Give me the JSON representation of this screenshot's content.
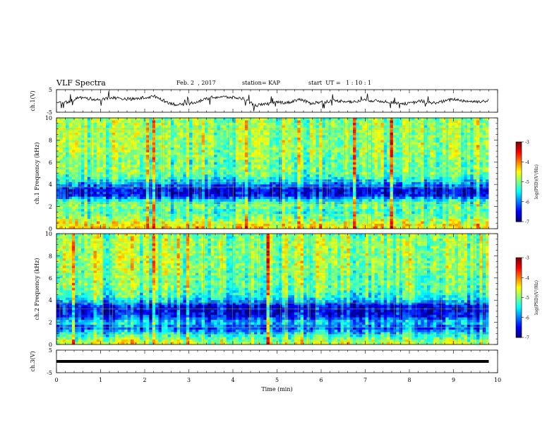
{
  "header": {
    "title": "VLF Spectra",
    "date": "Feb. 2  , 2017",
    "station": "station= KAP",
    "start_ut": "start  UT =   1 : 10 : 1"
  },
  "colorbar": {
    "label": "log(PSD)(V²/Hz)",
    "ticks": [
      "-3",
      "-4",
      "-5",
      "-6",
      "-7"
    ]
  },
  "chart_data": [
    {
      "type": "line",
      "name": "ch1-waveform",
      "ylabel": "ch.1(V)",
      "ylim": [
        -5,
        5
      ],
      "yticks": [
        "5",
        "-5"
      ],
      "xlim": [
        0,
        10
      ],
      "x": [
        0,
        0.25,
        0.5,
        0.75,
        1.0,
        1.25,
        1.5,
        1.75,
        2.0,
        2.25,
        2.5,
        2.75,
        3.0,
        3.25,
        3.5,
        3.75,
        4.0,
        4.25,
        4.5,
        4.75,
        5.0,
        5.25,
        5.5,
        5.75,
        6.0,
        6.25,
        6.5,
        6.75,
        7.0,
        7.25,
        7.5,
        7.75,
        8.0,
        8.25,
        8.5,
        8.75,
        9.0,
        9.25,
        9.5,
        9.75
      ],
      "y": [
        -1.0,
        -0.5,
        1.5,
        1.0,
        0.5,
        1.5,
        1.0,
        0.8,
        1.5,
        2.0,
        -0.5,
        -1.8,
        -1.2,
        0.0,
        1.5,
        1.8,
        1.5,
        1.0,
        -2.0,
        -1.5,
        -0.5,
        -0.8,
        0.8,
        -1.0,
        -0.5,
        0.0,
        0.0,
        -0.5,
        0.5,
        0.0,
        -0.3,
        -1.0,
        -1.2,
        0.0,
        -1.0,
        -0.3,
        0.8,
        0.0,
        -0.3,
        0.0
      ]
    },
    {
      "type": "heatmap",
      "name": "ch1-spectrogram",
      "ylabel": "ch.1 Frequency (kHz)",
      "ylim": [
        0,
        10
      ],
      "yticks": [
        "0",
        "2",
        "4",
        "6",
        "8",
        "10"
      ],
      "xlim": [
        0,
        9.8
      ],
      "zlim": [
        -7,
        -3
      ],
      "freq_profile_khz": [
        0.0,
        0.5,
        1.0,
        1.5,
        2.0,
        2.5,
        3.0,
        3.5,
        4.0,
        4.5,
        5.0,
        5.5,
        6.0,
        6.5,
        7.0,
        7.5,
        8.0,
        8.5,
        9.0,
        9.5,
        10.0
      ],
      "freq_profile_log_psd": [
        -4.3,
        -4.6,
        -5.0,
        -5.3,
        -5.0,
        -5.4,
        -6.5,
        -6.6,
        -6.0,
        -5.4,
        -5.1,
        -5.0,
        -5.1,
        -5.0,
        -4.9,
        -4.9,
        -4.9,
        -4.9,
        -4.9,
        -4.9,
        -5.0
      ]
    },
    {
      "type": "heatmap",
      "name": "ch2-spectrogram",
      "ylabel": "ch.2 Frequency (kHz)",
      "ylim": [
        0,
        10
      ],
      "yticks": [
        "0",
        "2",
        "4",
        "6",
        "8",
        "10"
      ],
      "xlim": [
        0,
        9.8
      ],
      "zlim": [
        -7,
        -3
      ],
      "freq_profile_khz": [
        0.0,
        0.5,
        1.0,
        1.5,
        2.0,
        2.5,
        3.0,
        3.5,
        4.0,
        4.5,
        5.0,
        5.5,
        6.0,
        6.5,
        7.0,
        7.5,
        8.0,
        8.5,
        9.0,
        9.5,
        10.0
      ],
      "freq_profile_log_psd": [
        -4.6,
        -5.0,
        -5.6,
        -6.2,
        -5.6,
        -6.4,
        -6.6,
        -6.5,
        -5.6,
        -5.3,
        -5.1,
        -5.0,
        -5.1,
        -5.0,
        -4.9,
        -4.9,
        -4.9,
        -4.9,
        -4.9,
        -4.9,
        -5.0
      ]
    },
    {
      "type": "line",
      "name": "ch3-waveform",
      "ylabel": "ch.3(V)",
      "ylim": [
        -5,
        5
      ],
      "yticks": [
        "5",
        "-5"
      ],
      "xlim": [
        0,
        10
      ],
      "x": [
        0,
        9.8
      ],
      "y": [
        0,
        0
      ]
    }
  ],
  "xaxis": {
    "label": "Time (min)",
    "ticks": [
      "0",
      "1",
      "2",
      "3",
      "4",
      "5",
      "6",
      "7",
      "8",
      "9",
      "10"
    ]
  }
}
